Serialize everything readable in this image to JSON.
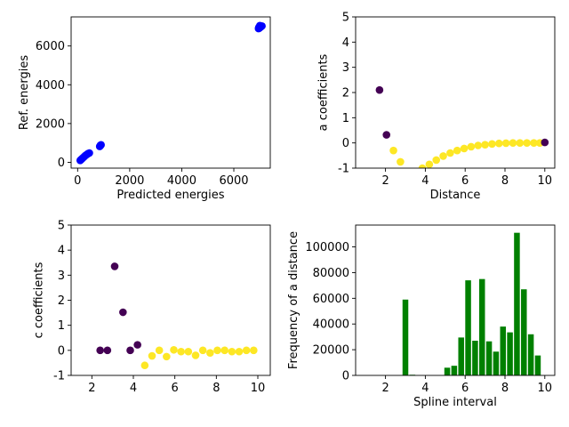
{
  "chart_data": [
    {
      "type": "scatter",
      "xlabel": "Predicted energies",
      "ylabel": "Ref. energies",
      "xlim": [
        -250,
        7400
      ],
      "ylim": [
        -300,
        7500
      ],
      "xticks": [
        0,
        2000,
        4000,
        6000
      ],
      "yticks": [
        0,
        2000,
        4000,
        6000
      ],
      "marker_color": "#0000ff",
      "points": [
        [
          100,
          100
        ],
        [
          140,
          150
        ],
        [
          180,
          200
        ],
        [
          220,
          250
        ],
        [
          260,
          300
        ],
        [
          300,
          350
        ],
        [
          350,
          400
        ],
        [
          400,
          450
        ],
        [
          450,
          480
        ],
        [
          850,
          820
        ],
        [
          870,
          860
        ],
        [
          900,
          900
        ],
        [
          880,
          880
        ],
        [
          6950,
          6900
        ],
        [
          6980,
          6920
        ],
        [
          7000,
          6950
        ],
        [
          7020,
          6980
        ],
        [
          7050,
          7000
        ],
        [
          7080,
          7030
        ],
        [
          7000,
          7050
        ],
        [
          6960,
          6960
        ]
      ]
    },
    {
      "type": "scatter",
      "xlabel": "Distance",
      "ylabel": "a coefficients",
      "xlim": [
        0.5,
        10.5
      ],
      "ylim": [
        -1,
        5
      ],
      "xticks": [
        2,
        4,
        6,
        8,
        10
      ],
      "yticks": [
        -1,
        0,
        1,
        2,
        3,
        4,
        5
      ],
      "points": [
        {
          "x": 1.7,
          "y": 2.1,
          "color": "#440154"
        },
        {
          "x": 2.05,
          "y": 0.32,
          "color": "#440154"
        },
        {
          "x": 2.4,
          "y": -0.3,
          "color": "#fde725"
        },
        {
          "x": 2.75,
          "y": -0.75,
          "color": "#fde725"
        },
        {
          "x": 3.85,
          "y": -1.0,
          "color": "#fde725"
        },
        {
          "x": 4.2,
          "y": -0.85,
          "color": "#fde725"
        },
        {
          "x": 4.55,
          "y": -0.68,
          "color": "#fde725"
        },
        {
          "x": 4.9,
          "y": -0.52,
          "color": "#fde725"
        },
        {
          "x": 5.25,
          "y": -0.4,
          "color": "#fde725"
        },
        {
          "x": 5.6,
          "y": -0.3,
          "color": "#fde725"
        },
        {
          "x": 5.95,
          "y": -0.22,
          "color": "#fde725"
        },
        {
          "x": 6.3,
          "y": -0.15,
          "color": "#fde725"
        },
        {
          "x": 6.65,
          "y": -0.1,
          "color": "#fde725"
        },
        {
          "x": 7.0,
          "y": -0.07,
          "color": "#fde725"
        },
        {
          "x": 7.35,
          "y": -0.04,
          "color": "#fde725"
        },
        {
          "x": 7.7,
          "y": -0.02,
          "color": "#fde725"
        },
        {
          "x": 8.05,
          "y": -0.01,
          "color": "#fde725"
        },
        {
          "x": 8.4,
          "y": 0.0,
          "color": "#fde725"
        },
        {
          "x": 8.75,
          "y": 0.0,
          "color": "#fde725"
        },
        {
          "x": 9.1,
          "y": 0.0,
          "color": "#fde725"
        },
        {
          "x": 9.45,
          "y": 0.0,
          "color": "#fde725"
        },
        {
          "x": 9.75,
          "y": 0.0,
          "color": "#fde725"
        },
        {
          "x": 10.0,
          "y": 0.02,
          "color": "#440154"
        }
      ]
    },
    {
      "type": "scatter",
      "xlabel": "",
      "ylabel": "c coefficients",
      "xlim": [
        1,
        10.6
      ],
      "ylim": [
        -1,
        5
      ],
      "xticks": [
        2,
        4,
        6,
        8,
        10
      ],
      "yticks": [
        -1,
        0,
        1,
        2,
        3,
        4,
        5
      ],
      "points": [
        {
          "x": 2.4,
          "y": 0.0,
          "color": "#440154"
        },
        {
          "x": 2.75,
          "y": 0.0,
          "color": "#440154"
        },
        {
          "x": 3.1,
          "y": 3.35,
          "color": "#440154"
        },
        {
          "x": 3.5,
          "y": 1.52,
          "color": "#440154"
        },
        {
          "x": 3.85,
          "y": 0.0,
          "color": "#440154"
        },
        {
          "x": 4.2,
          "y": 0.22,
          "color": "#440154"
        },
        {
          "x": 4.55,
          "y": -0.6,
          "color": "#fde725"
        },
        {
          "x": 4.9,
          "y": -0.22,
          "color": "#fde725"
        },
        {
          "x": 5.25,
          "y": 0.0,
          "color": "#fde725"
        },
        {
          "x": 5.6,
          "y": -0.25,
          "color": "#fde725"
        },
        {
          "x": 5.95,
          "y": 0.02,
          "color": "#fde725"
        },
        {
          "x": 6.3,
          "y": -0.05,
          "color": "#fde725"
        },
        {
          "x": 6.65,
          "y": -0.05,
          "color": "#fde725"
        },
        {
          "x": 7.0,
          "y": -0.2,
          "color": "#fde725"
        },
        {
          "x": 7.35,
          "y": 0.0,
          "color": "#fde725"
        },
        {
          "x": 7.7,
          "y": -0.1,
          "color": "#fde725"
        },
        {
          "x": 8.05,
          "y": 0.0,
          "color": "#fde725"
        },
        {
          "x": 8.4,
          "y": 0.0,
          "color": "#fde725"
        },
        {
          "x": 8.75,
          "y": -0.05,
          "color": "#fde725"
        },
        {
          "x": 9.1,
          "y": -0.05,
          "color": "#fde725"
        },
        {
          "x": 9.45,
          "y": 0.0,
          "color": "#fde725"
        },
        {
          "x": 9.8,
          "y": 0.0,
          "color": "#fde725"
        }
      ]
    },
    {
      "type": "bar",
      "xlabel": "Spline interval",
      "ylabel": "Frequency of a distance",
      "xlim": [
        0.5,
        10.5
      ],
      "ylim": [
        0,
        117000
      ],
      "xticks": [
        2,
        4,
        6,
        8,
        10
      ],
      "yticks": [
        0,
        20000,
        40000,
        60000,
        80000,
        100000
      ],
      "bar_color": "#008000",
      "bar_width": 0.29,
      "x": [
        3.0,
        3.35,
        5.1,
        5.45,
        5.8,
        6.15,
        6.5,
        6.85,
        7.2,
        7.55,
        7.9,
        8.25,
        8.6,
        8.95,
        9.3,
        9.65
      ],
      "values": [
        59000,
        500,
        6000,
        7500,
        29500,
        74000,
        27000,
        75000,
        26500,
        18500,
        38000,
        33500,
        111000,
        67000,
        32000,
        15500
      ]
    }
  ]
}
